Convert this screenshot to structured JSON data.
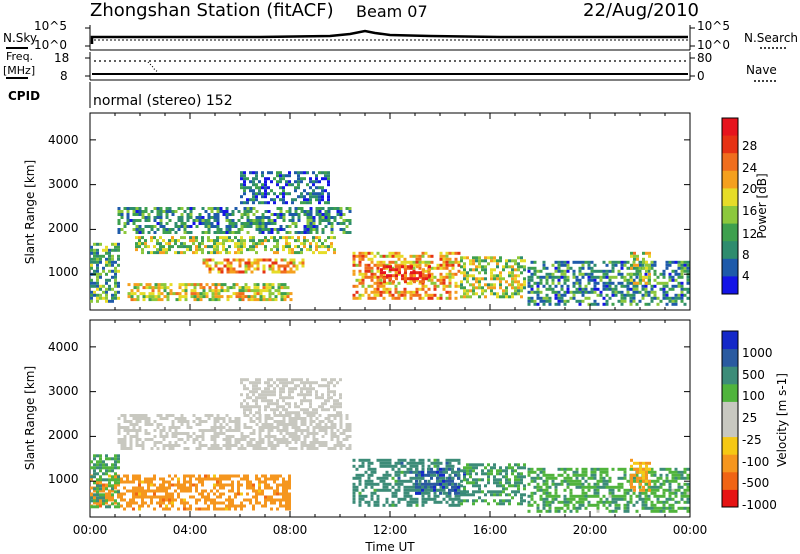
{
  "header": {
    "title": "Zhongshan Station (fitACF)",
    "beam": "Beam 07",
    "date": "22/Aug/2010"
  },
  "status_panels": {
    "nsky": {
      "label": "N.Sky",
      "ticks": [
        "10^5",
        "10^0"
      ]
    },
    "nsearch": {
      "label": "N.Search",
      "ticks": [
        "10^5",
        "10^0"
      ]
    },
    "freq": {
      "label_top": "Freq.",
      "label_unit": "[MHz]",
      "ticks": [
        "18",
        "8"
      ]
    },
    "nave": {
      "label": "Nave",
      "ticks": [
        "80",
        "0"
      ]
    },
    "cpid": {
      "label": "CPID",
      "text": "normal (stereo) 152"
    }
  },
  "axes": {
    "time_ticks": [
      "00:00",
      "04:00",
      "08:00",
      "12:00",
      "16:00",
      "20:00",
      "00:00"
    ],
    "xlabel": "Time UT",
    "range_ticks": [
      "1000",
      "2000",
      "3000",
      "4000"
    ],
    "ylabel": "Slant Range [km]"
  },
  "colorbars": {
    "power": {
      "label": "Power [dB]",
      "tick_labels": [
        "4",
        "8",
        "12",
        "16",
        "20",
        "24",
        "28"
      ],
      "colors": [
        "#1414e6",
        "#1e5aaa",
        "#2e8c6e",
        "#3ea04e",
        "#8cc83c",
        "#e6dc28",
        "#f5a01e",
        "#f06e1e",
        "#e63214",
        "#e6141e"
      ]
    },
    "velocity": {
      "label": "Velocity [m s-1]",
      "tick_labels": [
        "1000",
        "500",
        "100",
        "25",
        "-25",
        "-100",
        "-500",
        "-1000"
      ],
      "colors": [
        "#1428c8",
        "#2a5aa0",
        "#3c8c78",
        "#50b43c",
        "#c8c8c0",
        "#c8c8c0",
        "#f5c814",
        "#f5961e",
        "#f06414",
        "#e61414"
      ]
    }
  },
  "chart_data": [
    {
      "type": "heatmap",
      "title": "Power",
      "ylabel": "Slant Range [km]",
      "xlabel": "Time UT",
      "xlim_hours": [
        0,
        24
      ],
      "ylim_km": [
        200,
        4600
      ],
      "colorbar_label": "Power [dB]",
      "colorbar_range": [
        0,
        30
      ],
      "regions": [
        {
          "t0": 1.1,
          "t1": 10.4,
          "r0": 1900,
          "r1": 2500,
          "v": 8
        },
        {
          "t0": 1.8,
          "t1": 9.8,
          "r0": 1500,
          "r1": 1850,
          "v": 14
        },
        {
          "t0": 4.5,
          "t1": 8.5,
          "r0": 1050,
          "r1": 1350,
          "v": 20
        },
        {
          "t0": 0.0,
          "t1": 1.2,
          "r0": 400,
          "r1": 1700,
          "v": 10
        },
        {
          "t0": 1.5,
          "t1": 8.0,
          "r0": 400,
          "r1": 800,
          "v": 16
        },
        {
          "t0": 6.0,
          "t1": 9.6,
          "r0": 2600,
          "r1": 3300,
          "v": 6
        },
        {
          "t0": 10.5,
          "t1": 14.8,
          "r0": 450,
          "r1": 1500,
          "v": 20
        },
        {
          "t0": 11.6,
          "t1": 13.6,
          "r0": 800,
          "r1": 1200,
          "v": 26
        },
        {
          "t0": 14.8,
          "t1": 17.4,
          "r0": 500,
          "r1": 1400,
          "v": 14
        },
        {
          "t0": 17.5,
          "t1": 23.9,
          "r0": 350,
          "r1": 1300,
          "v": 8
        },
        {
          "t0": 21.6,
          "t1": 22.4,
          "r0": 800,
          "r1": 1500,
          "v": 16
        }
      ]
    },
    {
      "type": "heatmap",
      "title": "Velocity",
      "ylabel": "Slant Range [km]",
      "xlabel": "Time UT",
      "xlim_hours": [
        0,
        24
      ],
      "ylim_km": [
        200,
        4600
      ],
      "colorbar_label": "Velocity [m s-1]",
      "colorbar_range": [
        -1000,
        1000
      ],
      "regions": [
        {
          "t0": 1.1,
          "t1": 10.4,
          "r0": 1750,
          "r1": 2500,
          "v": 0
        },
        {
          "t0": 6.0,
          "t1": 10.0,
          "r0": 2500,
          "r1": 3300,
          "v": 0
        },
        {
          "t0": 0.0,
          "t1": 8.0,
          "r0": 400,
          "r1": 1150,
          "v": -300
        },
        {
          "t0": 0.0,
          "t1": 1.2,
          "r0": 400,
          "r1": 1600,
          "v": 100
        },
        {
          "t0": 10.5,
          "t1": 14.8,
          "r0": 450,
          "r1": 1500,
          "v": 300
        },
        {
          "t0": 13.0,
          "t1": 15.0,
          "r0": 700,
          "r1": 1300,
          "v": 700
        },
        {
          "t0": 14.8,
          "t1": 17.4,
          "r0": 500,
          "r1": 1400,
          "v": 120
        },
        {
          "t0": 17.5,
          "t1": 23.9,
          "r0": 350,
          "r1": 1300,
          "v": 80
        },
        {
          "t0": 21.6,
          "t1": 22.4,
          "r0": 800,
          "r1": 1500,
          "v": -150
        }
      ]
    }
  ]
}
